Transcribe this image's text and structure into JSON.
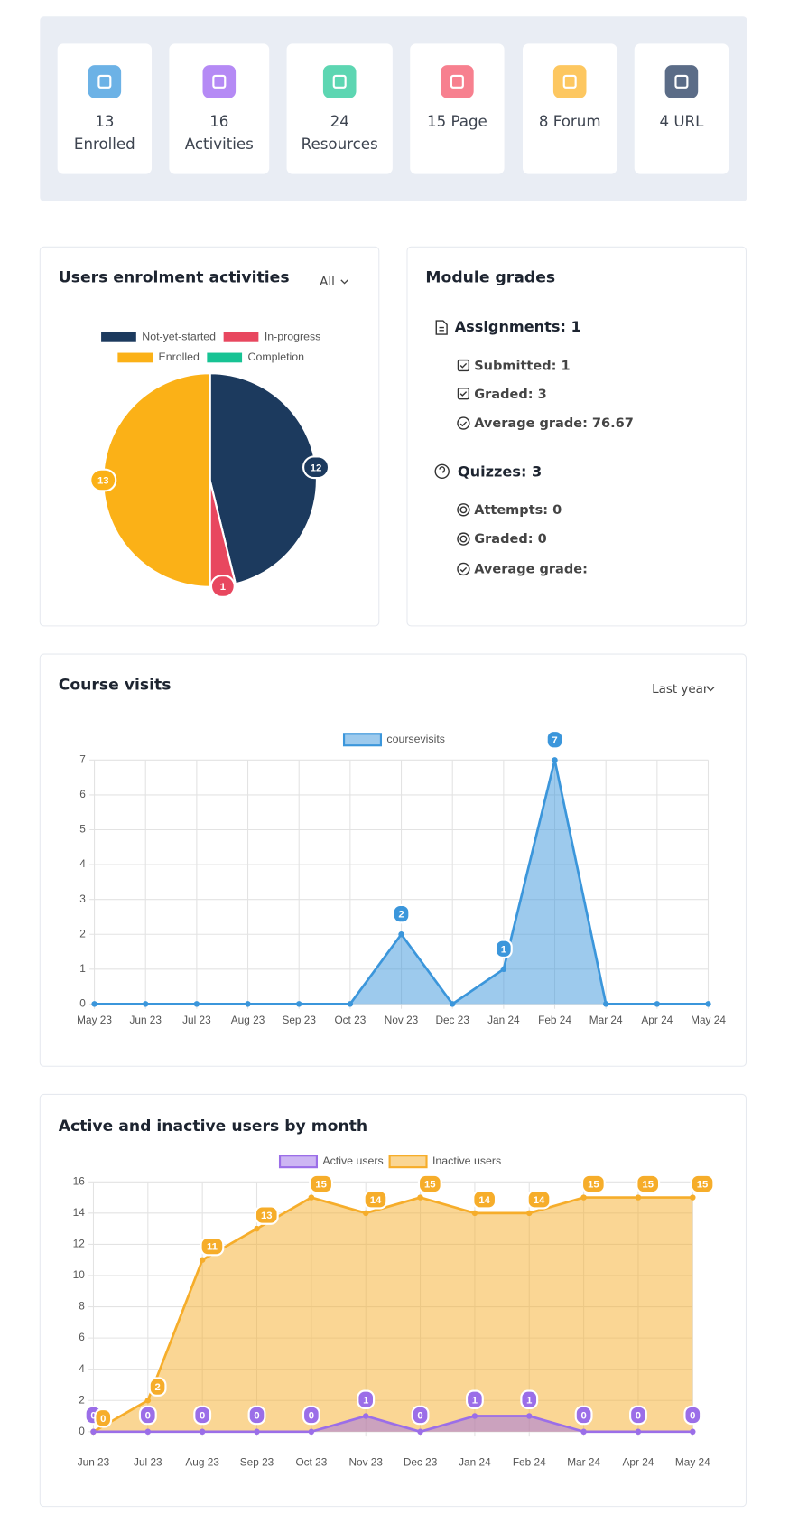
{
  "stats": [
    {
      "lines": [
        "13",
        "Enrolled"
      ]
    },
    {
      "lines": [
        "16",
        "Activities"
      ]
    },
    {
      "lines": [
        "24",
        "Resources"
      ]
    },
    {
      "lines": [
        "15 Page"
      ]
    },
    {
      "lines": [
        "8 Forum"
      ]
    },
    {
      "lines": [
        "4 URL"
      ]
    }
  ],
  "module_grades": {
    "title": "Module grades",
    "assignments": {
      "heading": "Assignments: 1",
      "items": [
        "Submitted: 1",
        "Graded: 3",
        "Average grade: 76.67"
      ]
    },
    "quizzes": {
      "heading": "Quizzes: 3",
      "items": [
        "Attempts: 0",
        "Graded: 0",
        "Average grade:"
      ]
    }
  },
  "chart_data": [
    {
      "type": "pie",
      "title": "Users enrolment activities",
      "filter": "All",
      "categories": [
        "Not-yet-started",
        "In-progress",
        "Enrolled",
        "Completion"
      ],
      "values": [
        12,
        1,
        13,
        0
      ],
      "colors": [
        "#1c3a5e",
        "#e8475f",
        "#fbb117",
        "#17c394"
      ],
      "legend": "top"
    },
    {
      "type": "line",
      "title": "Course visits",
      "filter": "Last year",
      "x": [
        "May 23",
        "Jun 23",
        "Jul 23",
        "Aug 23",
        "Sep 23",
        "Oct 23",
        "Nov 23",
        "Dec 23",
        "Jan 24",
        "Feb 24",
        "Mar 24",
        "Apr 24",
        "May 24"
      ],
      "series": [
        {
          "name": "coursevisits",
          "color": "#3b96db",
          "values": [
            0,
            0,
            0,
            0,
            0,
            0,
            2,
            0,
            1,
            7,
            0,
            0,
            0
          ]
        }
      ],
      "ylim": [
        0,
        7
      ],
      "yticks": [
        0,
        1,
        2,
        3,
        4,
        5,
        6,
        7
      ],
      "grid": true,
      "legend": "top"
    },
    {
      "type": "line",
      "title": "Active and inactive users by month",
      "x": [
        "Jun 23",
        "Jul 23",
        "Aug 23",
        "Sep 23",
        "Oct 23",
        "Nov 23",
        "Dec 23",
        "Jan 24",
        "Feb 24",
        "Mar 24",
        "Apr 24",
        "May 24"
      ],
      "series": [
        {
          "name": "Active users",
          "color": "#9b6ee8",
          "values": [
            0,
            0,
            0,
            0,
            0,
            1,
            0,
            1,
            1,
            0,
            0,
            0
          ]
        },
        {
          "name": "Inactive users",
          "color": "#f6ad2a",
          "values": [
            0,
            2,
            11,
            13,
            15,
            14,
            15,
            14,
            14,
            15,
            15,
            15
          ]
        }
      ],
      "ylim": [
        0,
        16
      ],
      "yticks": [
        0,
        2,
        4,
        6,
        8,
        10,
        12,
        14,
        16
      ],
      "grid": true,
      "legend": "top"
    }
  ]
}
